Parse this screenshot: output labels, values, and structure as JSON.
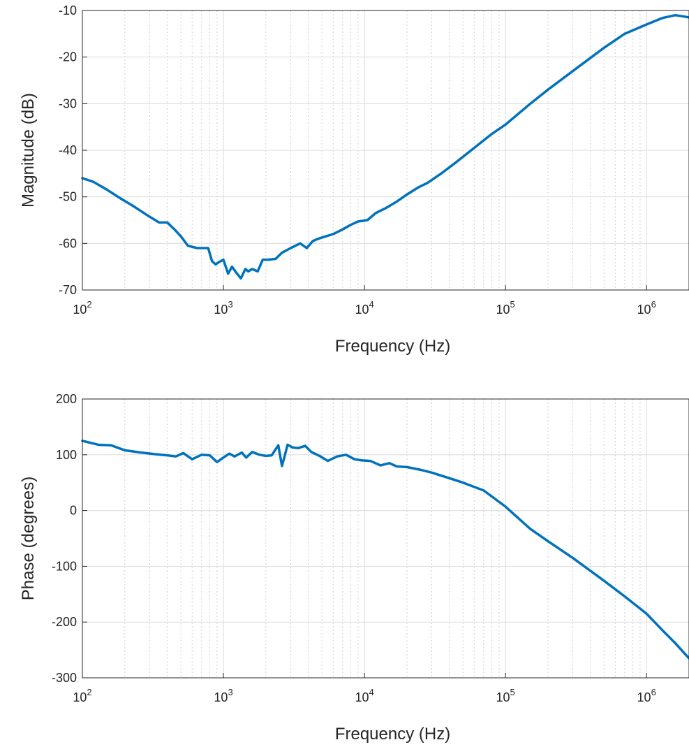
{
  "chart_data": [
    {
      "type": "line",
      "title": "",
      "xlabel": "Frequency (Hz)",
      "ylabel": "Magnitude (dB)",
      "xscale": "log",
      "xlim": [
        100,
        2000000
      ],
      "ylim": [
        -70,
        -10
      ],
      "grid": true,
      "xticks": [
        {
          "value": 100,
          "base": "10",
          "exp": "2"
        },
        {
          "value": 1000,
          "base": "10",
          "exp": "3"
        },
        {
          "value": 10000,
          "base": "10",
          "exp": "4"
        },
        {
          "value": 100000,
          "base": "10",
          "exp": "5"
        },
        {
          "value": 1000000,
          "base": "10",
          "exp": "6"
        }
      ],
      "yticks": [
        -70,
        -60,
        -50,
        -40,
        -30,
        -20,
        -10
      ],
      "line_color": "#0072BD",
      "series": [
        {
          "x": [
            100,
            120,
            150,
            190,
            230,
            290,
            350,
            400,
            450,
            500,
            560,
            650,
            780,
            830,
            880,
            930,
            1000,
            1080,
            1150,
            1250,
            1330,
            1430,
            1500,
            1600,
            1750,
            1900,
            2100,
            2350,
            2600,
            3000,
            3500,
            3900,
            4300,
            4700,
            5300,
            6000,
            7000,
            8000,
            9000,
            10500,
            12000,
            14000,
            17000,
            20000,
            24000,
            28000,
            35000,
            45000,
            60000,
            80000,
            100000,
            150000,
            200000,
            300000,
            500000,
            700000,
            1000000,
            1300000,
            1600000,
            1850000,
            2000000
          ],
          "y": [
            -46,
            -46.8,
            -48.5,
            -50.5,
            -52,
            -54,
            -55.5,
            -55.5,
            -57,
            -58.5,
            -60.5,
            -61,
            -61,
            -63.8,
            -64.5,
            -64,
            -63.5,
            -66.5,
            -65,
            -66.5,
            -67.5,
            -65.5,
            -66,
            -65.5,
            -66,
            -63.5,
            -63.5,
            -63.3,
            -62,
            -61,
            -60,
            -61,
            -59.5,
            -59,
            -58.5,
            -58,
            -57,
            -56,
            -55.3,
            -55,
            -53.5,
            -52.5,
            -51,
            -49.5,
            -48,
            -47,
            -45,
            -42.5,
            -39.5,
            -36.5,
            -34.5,
            -30,
            -27,
            -23,
            -18,
            -15,
            -13,
            -11.6,
            -11,
            -11.3,
            -11.5
          ]
        }
      ]
    },
    {
      "type": "line",
      "title": "",
      "xlabel": "Frequency (Hz)",
      "ylabel": "Phase (degrees)",
      "xscale": "log",
      "xlim": [
        100,
        2000000
      ],
      "ylim": [
        -300,
        200
      ],
      "grid": true,
      "xticks": [
        {
          "value": 100,
          "base": "10",
          "exp": "2"
        },
        {
          "value": 1000,
          "base": "10",
          "exp": "3"
        },
        {
          "value": 10000,
          "base": "10",
          "exp": "4"
        },
        {
          "value": 100000,
          "base": "10",
          "exp": "5"
        },
        {
          "value": 1000000,
          "base": "10",
          "exp": "6"
        }
      ],
      "yticks": [
        -300,
        -200,
        -100,
        0,
        100,
        200
      ],
      "line_color": "#0072BD",
      "series": [
        {
          "x": [
            100,
            130,
            160,
            200,
            260,
            330,
            400,
            460,
            520,
            600,
            700,
            800,
            900,
            1000,
            1100,
            1200,
            1350,
            1450,
            1600,
            1800,
            2000,
            2200,
            2450,
            2600,
            2700,
            2850,
            3100,
            3400,
            3800,
            4200,
            4800,
            5500,
            6400,
            7400,
            8500,
            9500,
            11000,
            13000,
            15000,
            17000,
            20000,
            25000,
            30000,
            40000,
            50000,
            70000,
            100000,
            150000,
            200000,
            300000,
            500000,
            700000,
            1000000,
            1300000,
            1600000,
            2000000
          ],
          "y": [
            125,
            118,
            117,
            108,
            104,
            101,
            99,
            97,
            103,
            92,
            100,
            99,
            87,
            95,
            102,
            97,
            104,
            95,
            105,
            100,
            98,
            99,
            117,
            80,
            95,
            118,
            113,
            112,
            116,
            105,
            98,
            89,
            97,
            100,
            92,
            90,
            89,
            81,
            85,
            79,
            78,
            73,
            68,
            58,
            50,
            36,
            7,
            -33,
            -55,
            -85,
            -126,
            -154,
            -185,
            -215,
            -238,
            -265
          ]
        }
      ]
    }
  ]
}
